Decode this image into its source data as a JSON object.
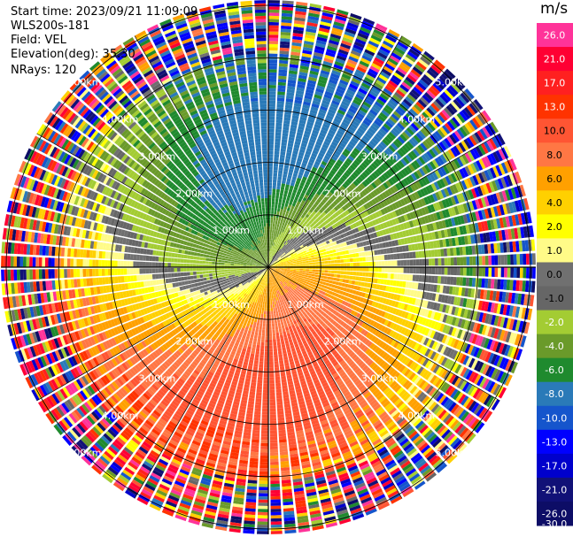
{
  "header": {
    "start_time": "Start time: 2023/09/21 11:09:09",
    "instrument": "WLS200s-181",
    "field": "Field: VEL",
    "elevation": "Elevation(deg): 35.30",
    "nrays": "NRays: 120"
  },
  "colorbar": {
    "unit": "m/s",
    "ticks": [
      "26.0",
      "21.0",
      "17.0",
      "13.0",
      "10.0",
      "8.0",
      "6.0",
      "4.0",
      "2.0",
      "1.0",
      "0.0",
      "-1.0",
      "-2.0",
      "-4.0",
      "-6.0",
      "-8.0",
      "-10.0",
      "-13.0",
      "-17.0",
      "-21.0",
      "-26.0",
      "-30.0"
    ],
    "colors": [
      "#ff3399",
      "#ff0033",
      "#ff2020",
      "#ff3300",
      "#ff5533",
      "#ff7744",
      "#ffa000",
      "#ffd000",
      "#ffff00",
      "#fffb88",
      "#707070",
      "#666666",
      "#a3cc33",
      "#6a9a2a",
      "#1f8a2e",
      "#2a7ab8",
      "#1555cc",
      "#0000ff",
      "#0000cc",
      "#111177",
      "#0d0d66"
    ]
  },
  "chart_data": {
    "type": "heatmap",
    "title": "",
    "xlabel": "",
    "ylabel": "",
    "range_unit": "km",
    "range_ring_labels": [
      "1.00km",
      "2.00km",
      "3.00km",
      "4.00km",
      "5.00km"
    ],
    "range_rings_km": [
      1,
      2,
      3,
      4,
      5
    ],
    "max_range_km": 5.1,
    "n_rays": 120,
    "field": "VEL",
    "value_range": [
      -30,
      26
    ],
    "pattern_note": "Doppler velocity: negative (blue/green) toward upper-left, positive (orange/red) toward lower-right, zero line as S-shaped grey band; noisy random values beyond ~4 km"
  },
  "colors": {
    "background": "#ffffff",
    "ring_line": "#000000"
  }
}
